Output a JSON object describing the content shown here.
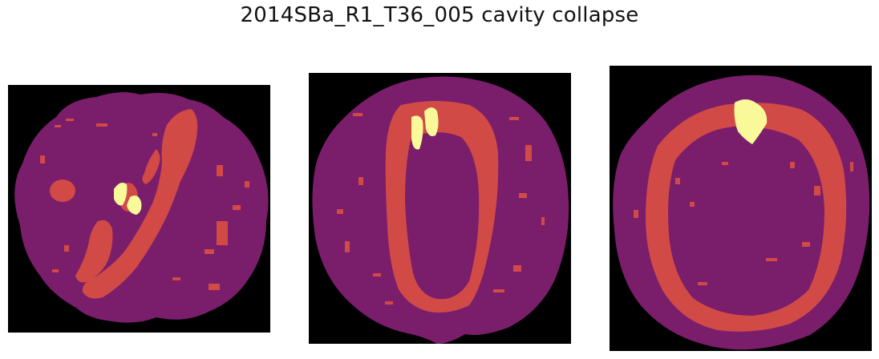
{
  "figure": {
    "title": "2014SBa_R1_T36_005 cavity collapse"
  },
  "colors": {
    "background": "#000000",
    "seed": "#7a1e6c",
    "tissue": "#d24a46",
    "cavity": "#f9f99a"
  },
  "panels": [
    {
      "id": "panel-1"
    },
    {
      "id": "panel-2"
    },
    {
      "id": "panel-3"
    }
  ]
}
